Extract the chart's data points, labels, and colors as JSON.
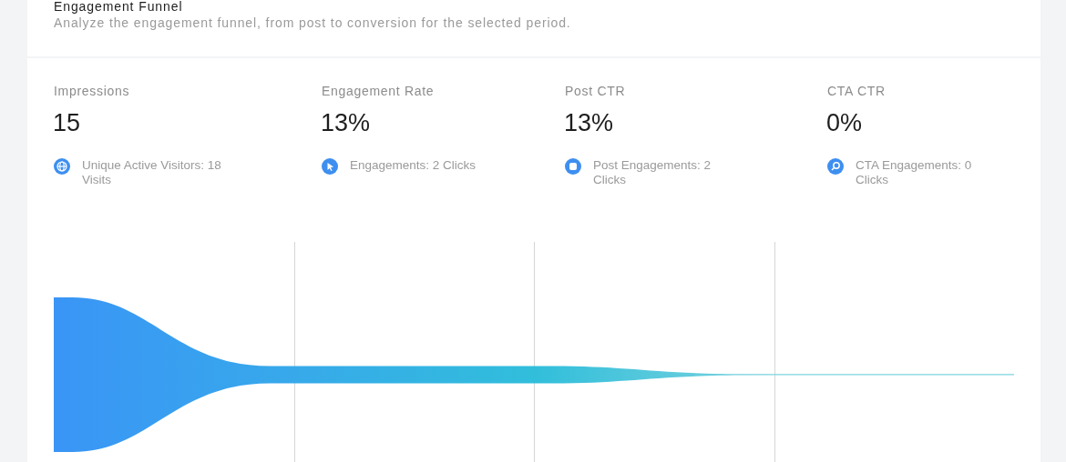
{
  "chart_data": {
    "type": "other",
    "title": "Engagement Funnel",
    "subtitle": "Analyze the engagement funnel, from post to conversion for the selected period.",
    "categories": [
      "Impressions",
      "Engagement Rate",
      "Post CTR",
      "CTA CTR"
    ],
    "values": [
      18,
      2,
      2,
      0
    ],
    "value_labels": [
      "Unique Active Visitors: 18 Visits",
      "Engagements: 2 Clicks",
      "Post Engagements: 2 Clicks",
      "CTA Engagements: 0 Clicks"
    ],
    "colors": [
      "#3a95f6",
      "#37a9ea",
      "#31bedb",
      "#7dd3de"
    ],
    "annotations": [
      "15",
      "13%",
      "13%",
      "0%"
    ]
  }
}
